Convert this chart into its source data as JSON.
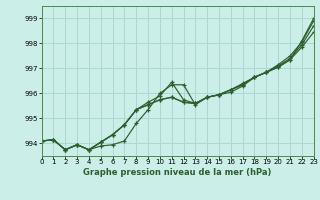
{
  "title": "Graphe pression niveau de la mer (hPa)",
  "bg_color": "#cceee8",
  "grid_color": "#aad8d2",
  "line_color": "#2d5e2d",
  "xlim": [
    0,
    23
  ],
  "ylim": [
    993.5,
    999.5
  ],
  "yticks": [
    994,
    995,
    996,
    997,
    998,
    999
  ],
  "xticks": [
    0,
    1,
    2,
    3,
    4,
    5,
    6,
    7,
    8,
    9,
    10,
    11,
    12,
    13,
    14,
    15,
    16,
    17,
    18,
    19,
    20,
    21,
    22,
    23
  ],
  "series": [
    [
      994.1,
      994.15,
      993.75,
      993.95,
      993.75,
      993.9,
      993.95,
      994.1,
      994.8,
      995.35,
      996.0,
      996.35,
      996.35,
      995.55,
      995.85,
      995.95,
      996.05,
      996.3,
      996.65,
      996.85,
      997.05,
      997.35,
      998.1,
      999.0
    ],
    [
      994.1,
      994.15,
      993.75,
      993.95,
      993.75,
      994.05,
      994.35,
      994.75,
      995.35,
      995.65,
      995.9,
      996.45,
      995.75,
      995.6,
      995.85,
      995.95,
      996.15,
      996.4,
      996.65,
      996.85,
      997.15,
      997.5,
      998.05,
      998.9
    ],
    [
      994.1,
      994.15,
      993.75,
      993.95,
      993.75,
      994.05,
      994.35,
      994.75,
      995.35,
      995.55,
      995.75,
      995.85,
      995.65,
      995.6,
      995.85,
      995.95,
      996.15,
      996.35,
      996.65,
      996.85,
      997.1,
      997.4,
      997.95,
      998.7
    ],
    [
      994.1,
      994.15,
      993.75,
      993.95,
      993.75,
      994.05,
      994.35,
      994.75,
      995.35,
      995.55,
      995.75,
      995.85,
      995.65,
      995.6,
      995.85,
      995.95,
      996.15,
      996.35,
      996.65,
      996.85,
      997.05,
      997.35,
      997.85,
      998.45
    ]
  ]
}
